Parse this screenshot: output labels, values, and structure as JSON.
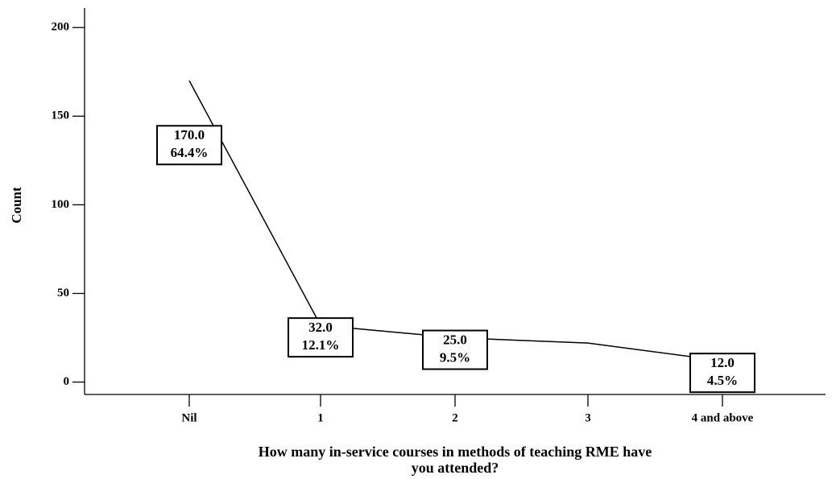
{
  "chart_data": {
    "type": "line",
    "categories": [
      "Nil",
      "1",
      "2",
      "3",
      "4 and above"
    ],
    "values": [
      170,
      32,
      25,
      22,
      12
    ],
    "value_labels": [
      "170.0",
      "32.0",
      "25.0",
      null,
      "12.0"
    ],
    "percent_labels": [
      "64.4%",
      "12.1%",
      "9.5%",
      null,
      "4.5%"
    ],
    "color": "#000000",
    "ylabel": "Count",
    "xlabel": [
      "How many in-service courses in methods of teaching RME have",
      "you attended?"
    ],
    "ylim": [
      -7,
      211
    ],
    "yticks": [
      0,
      50,
      100,
      150,
      200
    ]
  }
}
